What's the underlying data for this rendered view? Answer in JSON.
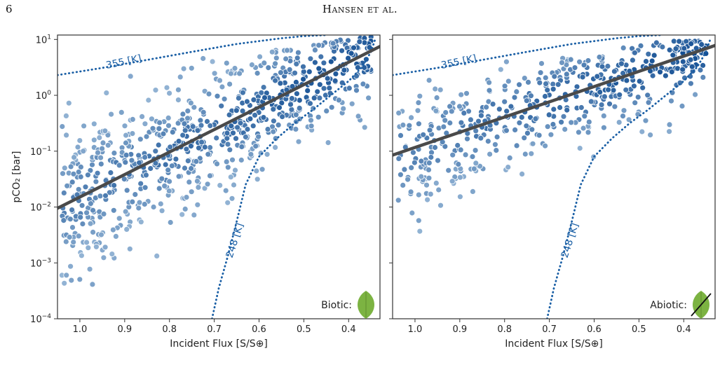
{
  "header": {
    "page_number": "6",
    "running_head": "Hansen et al."
  },
  "colors": {
    "fit_line": "#4a4a4a",
    "isotherm": "#1a5fa5",
    "leaf": "#7cb342",
    "points_light": "#c6dcee",
    "points_dark": "#08468e"
  },
  "chart_data": [
    {
      "type": "scatter",
      "panel": "left",
      "xlabel": "Incident Flux [S/S⊕]",
      "ylabel": "pCO₂ [bar]",
      "xlim": [
        1.05,
        0.33
      ],
      "ylim": [
        0.0001,
        12
      ],
      "yscale": "log",
      "x_ticks": [
        1.0,
        0.9,
        0.8,
        0.7,
        0.6,
        0.5,
        0.4
      ],
      "x_tick_labels": [
        "1.0",
        "0.9",
        "0.8",
        "0.7",
        "0.6",
        "0.5",
        "0.4"
      ],
      "y_ticks": [
        0.0001,
        0.001,
        0.01,
        0.1,
        1,
        10
      ],
      "y_tick_labels": [
        {
          "base": "10",
          "exp": "−4"
        },
        {
          "base": "10",
          "exp": "−3"
        },
        {
          "base": "10",
          "exp": "−2"
        },
        {
          "base": "10",
          "exp": "−1"
        },
        {
          "base": "10",
          "exp": "0"
        },
        {
          "base": "10",
          "exp": "1"
        }
      ],
      "grid": false,
      "fit_line": {
        "x": [
          1.05,
          0.33
        ],
        "y": [
          0.0095,
          7.5
        ]
      },
      "isotherms": [
        {
          "label": "355 [K]",
          "x": [
            1.05,
            0.95,
            0.85,
            0.75,
            0.65,
            0.55,
            0.5,
            0.45
          ],
          "y": [
            2.3,
            3.1,
            4.3,
            6.0,
            8.3,
            10.5,
            11.5,
            12.0
          ]
        },
        {
          "label": "248 [K]",
          "x": [
            0.705,
            0.69,
            0.67,
            0.65,
            0.63,
            0.6,
            0.56,
            0.52,
            0.48,
            0.44,
            0.4,
            0.37,
            0.35,
            0.34
          ],
          "y": [
            0.0001,
            0.00035,
            0.0013,
            0.0055,
            0.025,
            0.08,
            0.17,
            0.32,
            0.55,
            1.0,
            1.8,
            3.2,
            6.0,
            10.5
          ]
        }
      ],
      "badge": {
        "label": "Biotic:",
        "icon": "leaf-icon"
      }
    },
    {
      "type": "scatter",
      "panel": "right",
      "xlabel": "Incident Flux [S/S⊕]",
      "ylabel": "",
      "xlim": [
        1.05,
        0.33
      ],
      "ylim": [
        0.0001,
        12
      ],
      "yscale": "log",
      "x_ticks": [
        1.0,
        0.9,
        0.8,
        0.7,
        0.6,
        0.5,
        0.4
      ],
      "x_tick_labels": [
        "1.0",
        "0.9",
        "0.8",
        "0.7",
        "0.6",
        "0.5",
        "0.4"
      ],
      "y_ticks": [
        0.0001,
        0.001,
        0.01,
        0.1,
        1,
        10
      ],
      "grid": false,
      "fit_line": {
        "x": [
          1.05,
          0.33
        ],
        "y": [
          0.085,
          7.8
        ]
      },
      "isotherms": [
        {
          "label": "355 [K]",
          "x": [
            1.05,
            0.95,
            0.85,
            0.75,
            0.65,
            0.55,
            0.5,
            0.45
          ],
          "y": [
            2.3,
            3.1,
            4.3,
            6.0,
            8.3,
            10.5,
            11.5,
            12.0
          ]
        },
        {
          "label": "248 [K]",
          "x": [
            0.705,
            0.69,
            0.67,
            0.65,
            0.63,
            0.6,
            0.56,
            0.52,
            0.48,
            0.44,
            0.4,
            0.37,
            0.35,
            0.34
          ],
          "y": [
            0.0001,
            0.00035,
            0.0013,
            0.0055,
            0.025,
            0.08,
            0.17,
            0.32,
            0.55,
            1.0,
            1.8,
            3.2,
            6.0,
            10.5
          ]
        }
      ],
      "badge": {
        "label": "Abiotic:",
        "icon": "crossed-leaf-icon"
      }
    }
  ]
}
